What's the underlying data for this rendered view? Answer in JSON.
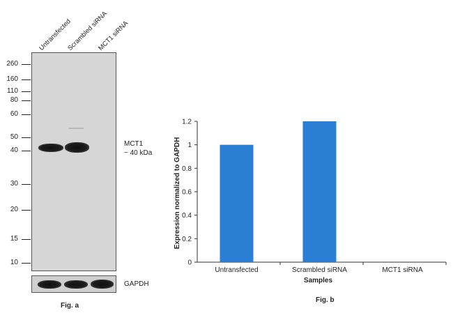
{
  "fig_a": {
    "lanes": [
      "Untransfected",
      "Scrambled siRNA",
      "MCT1 siRNA"
    ],
    "mw_markers": [
      "260",
      "160",
      "110",
      "80",
      "60",
      "50",
      "40",
      "30",
      "20",
      "15",
      "10"
    ],
    "target_label_1": "MCT1",
    "target_label_2": "~ 40 kDa",
    "control_label": "GAPDH",
    "caption": "Fig. a"
  },
  "fig_b": {
    "caption": "Fig. b"
  },
  "chart_data": {
    "type": "bar",
    "categories": [
      "Untransfected",
      "Scrambled siRNA",
      "MCT1 siRNA"
    ],
    "values": [
      1.0,
      1.2,
      0.0
    ],
    "xlabel": "Samples",
    "ylabel": "Expression normalized to GAPDH",
    "ylim": [
      0,
      1.2
    ],
    "yticks": [
      "0",
      "0.2",
      "0.4",
      "0.6",
      "0.8",
      "1",
      "1.2"
    ],
    "bar_color": "#2a7fd4",
    "grid": false
  }
}
